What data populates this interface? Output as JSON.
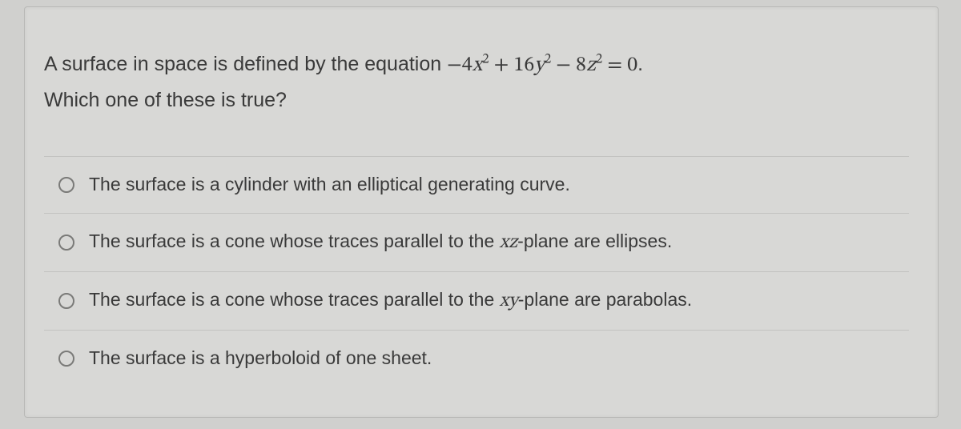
{
  "background_color": "#d0d0ce",
  "panel_color": "#d8d8d6",
  "border_color": "#b8b8b6",
  "divider_color": "#c2c2c0",
  "text_color": "#3a3a3a",
  "radio_border_color": "#7a7a78",
  "question": {
    "stem_prefix": "A surface in space is defined by the equation ",
    "equation_html": "−4<span class='math-it'>x</span><sup>2</sup> + 16<span class='math-it'>y</span><sup>2</sup> − 8<span class='math-it'>z</span><sup>2</sup> = 0",
    "stem_suffix": ".",
    "line2": "Which one of these is true?"
  },
  "options": [
    {
      "id": "opt-a",
      "selected": false,
      "text": "The surface is a cylinder with an elliptical generating curve."
    },
    {
      "id": "opt-b",
      "selected": false,
      "prefix": "The surface is a cone whose traces parallel to the ",
      "var": "xz",
      "suffix": "-plane are ellipses."
    },
    {
      "id": "opt-c",
      "selected": false,
      "prefix": "The surface is a cone whose traces parallel to the ",
      "var": "xy",
      "suffix": "-plane are parabolas."
    },
    {
      "id": "opt-d",
      "selected": false,
      "text": "The surface is a hyperboloid of one sheet."
    }
  ]
}
